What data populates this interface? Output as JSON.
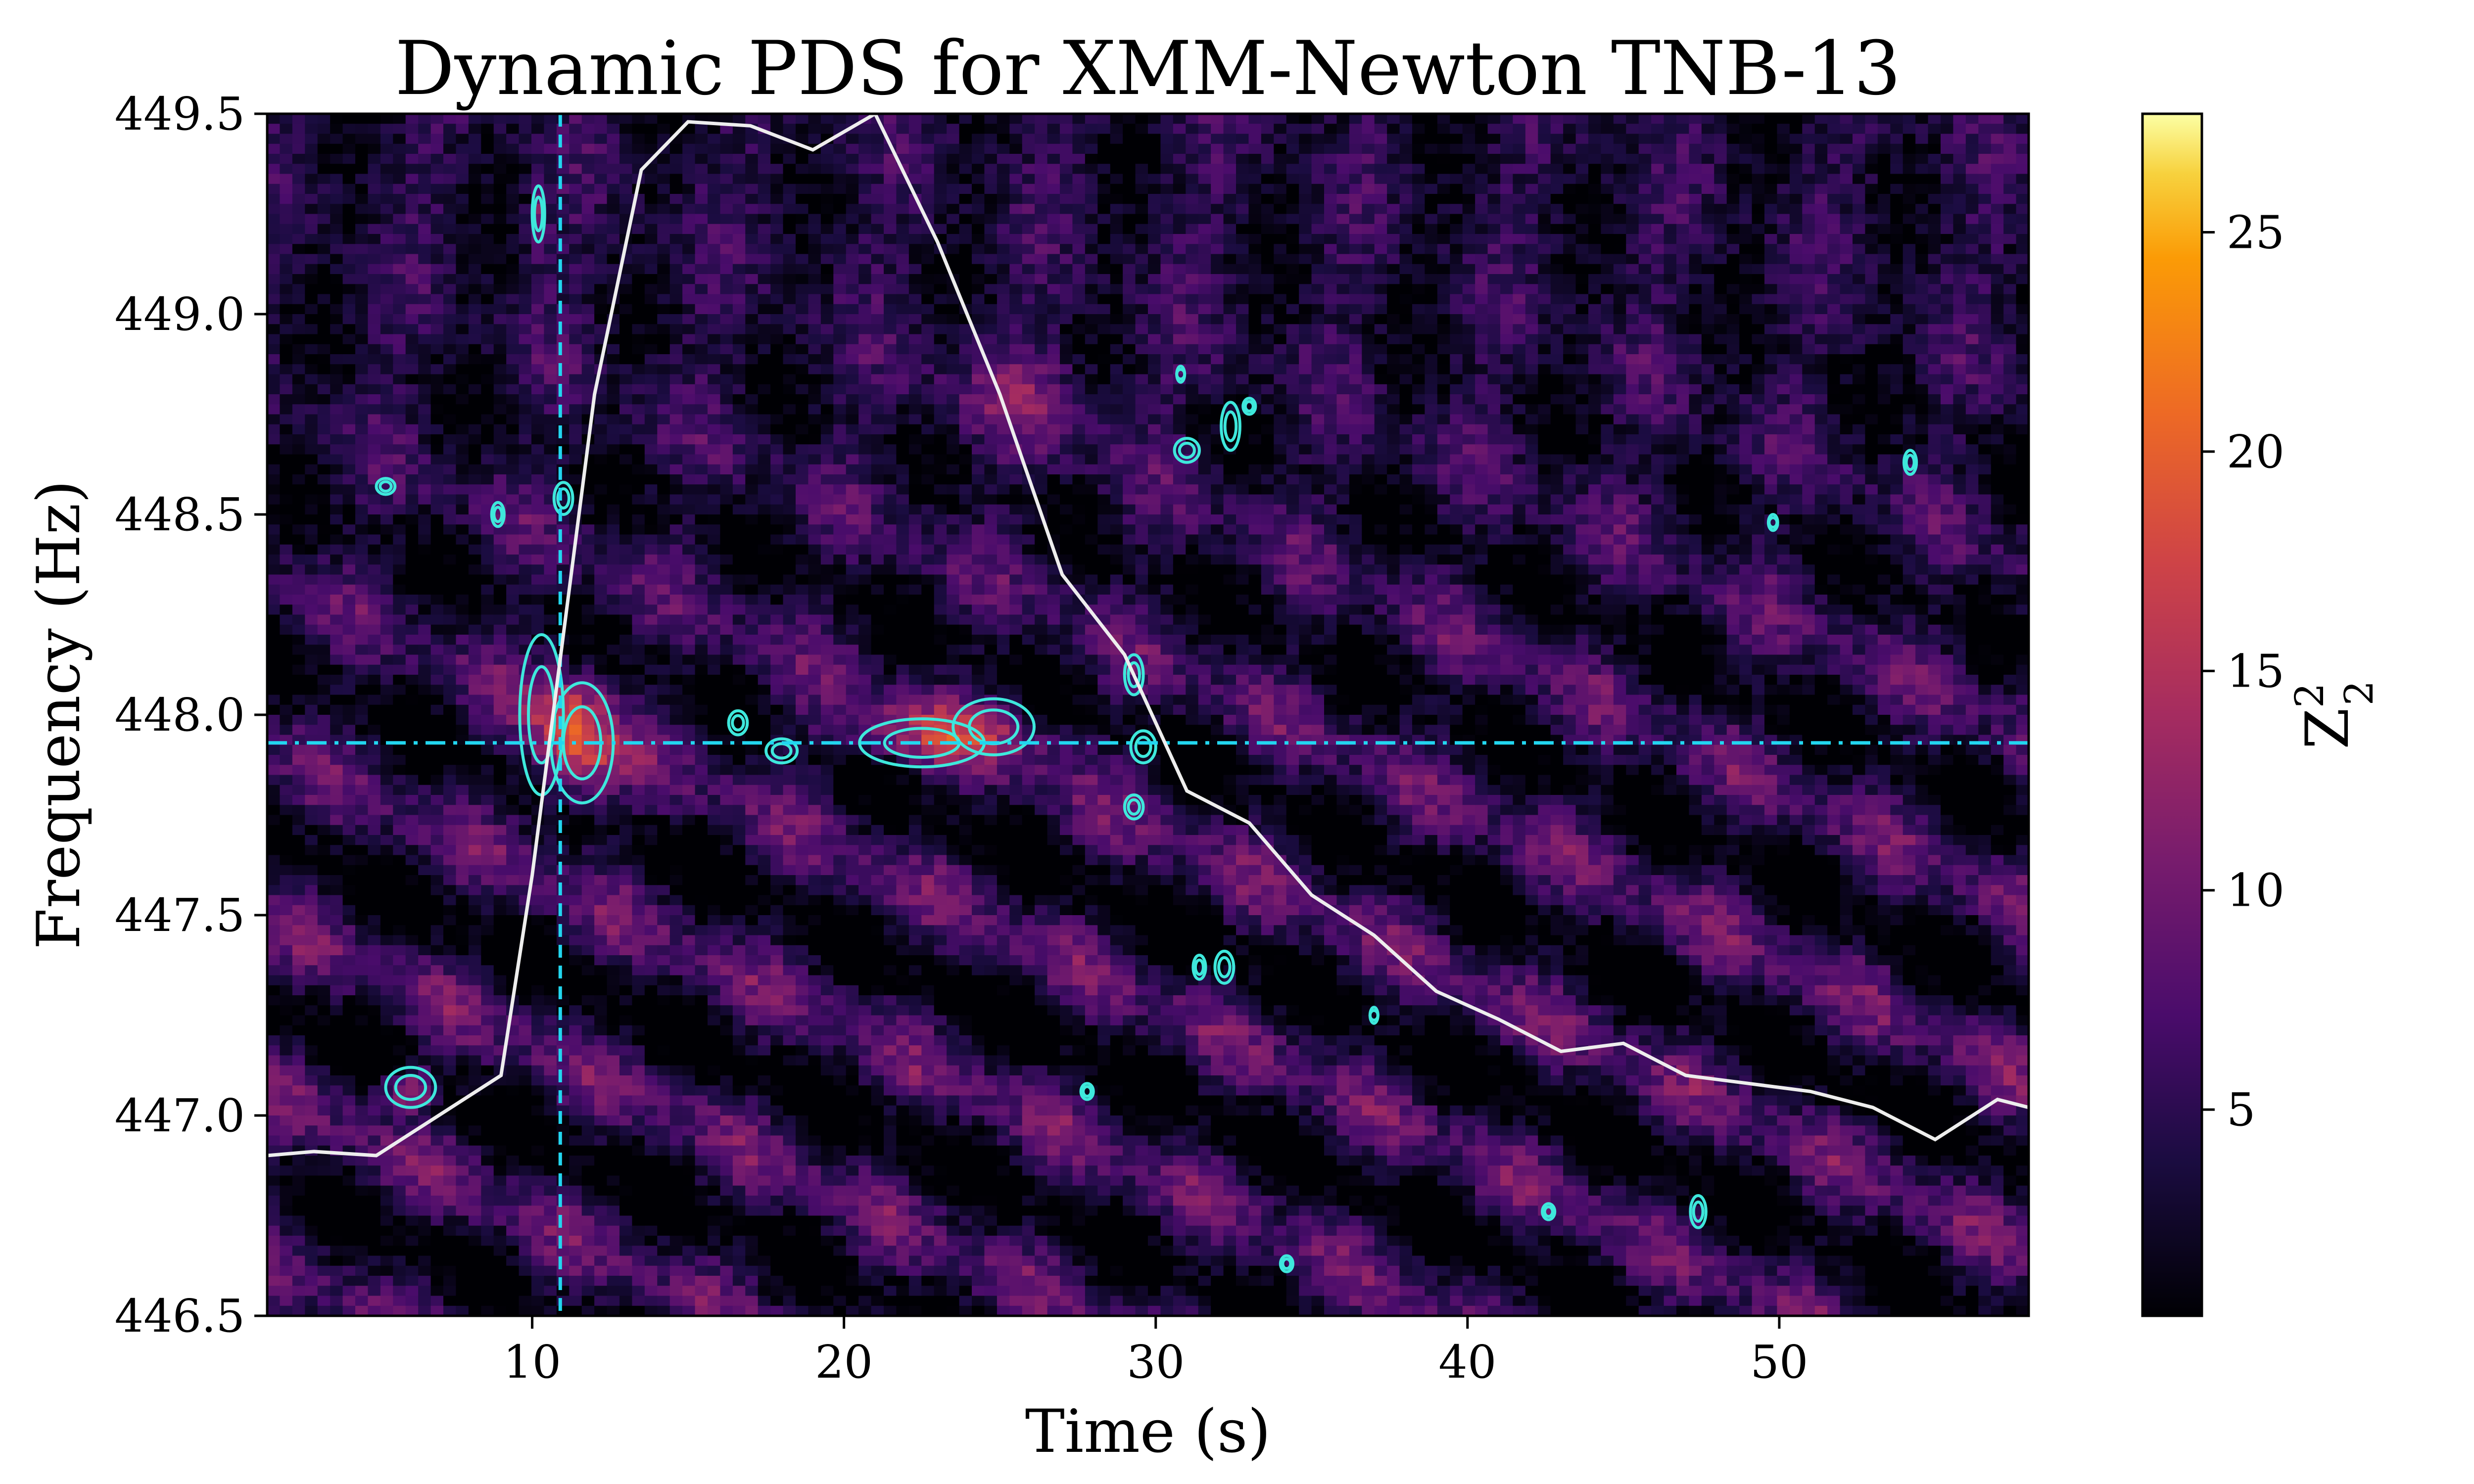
{
  "chart_data": {
    "type": "heatmap",
    "title": "Dynamic PDS for XMM-Newton TNB-13",
    "xlabel": "Time (s)",
    "ylabel": "Frequency (Hz)",
    "xlim": [
      1.5,
      58
    ],
    "ylim": [
      446.5,
      449.5
    ],
    "xticks": [
      10,
      20,
      30,
      40,
      50
    ],
    "xtick_labels": [
      "10",
      "20",
      "30",
      "40",
      "50"
    ],
    "yticks": [
      446.5,
      447.0,
      447.5,
      448.0,
      448.5,
      449.0,
      449.5
    ],
    "ytick_labels": [
      "446.5",
      "447.0",
      "447.5",
      "448.0",
      "448.5",
      "449.0",
      "449.5"
    ],
    "colormap": "inferno",
    "colorbar": {
      "label_base": "Z",
      "label_sup": "2",
      "label_sub": "2",
      "range": [
        0.3,
        27.7
      ],
      "ticks": [
        5,
        10,
        15,
        20,
        25
      ],
      "tick_labels": [
        "5",
        "10",
        "15",
        "20",
        "25"
      ]
    },
    "reference_lines": {
      "vertical_time_s": 10.9,
      "horizontal_frequency_hz": 447.93,
      "color": "#22d6f0"
    },
    "light_curve": {
      "color": "#eeeeee",
      "x": [
        1.5,
        3,
        5,
        9,
        10,
        11,
        12,
        13.5,
        15,
        17,
        19,
        21,
        23,
        25,
        27,
        29,
        31,
        33,
        35,
        37,
        39,
        41,
        43,
        45,
        47,
        49,
        51,
        53,
        55,
        57,
        58
      ],
      "y": [
        446.9,
        446.91,
        446.9,
        447.1,
        447.6,
        448.2,
        448.8,
        449.36,
        449.48,
        449.47,
        449.41,
        449.5,
        449.18,
        448.8,
        448.35,
        448.15,
        447.81,
        447.73,
        447.55,
        447.45,
        447.31,
        447.24,
        447.16,
        447.18,
        447.1,
        447.08,
        447.06,
        447.02,
        446.94,
        447.04,
        447.02
      ]
    },
    "contours": {
      "color": "#3ee8dc",
      "blobs": [
        {
          "x": 10.3,
          "y": 448.0,
          "rx": 0.7,
          "ry": 0.2
        },
        {
          "x": 11.6,
          "y": 447.93,
          "rx": 1.0,
          "ry": 0.15
        },
        {
          "x": 6.1,
          "y": 447.07,
          "rx": 0.8,
          "ry": 0.05
        },
        {
          "x": 10.2,
          "y": 449.25,
          "rx": 0.2,
          "ry": 0.07
        },
        {
          "x": 22.5,
          "y": 447.93,
          "rx": 2.0,
          "ry": 0.06
        },
        {
          "x": 24.8,
          "y": 447.97,
          "rx": 1.3,
          "ry": 0.07
        },
        {
          "x": 18.0,
          "y": 447.91,
          "rx": 0.5,
          "ry": 0.03
        },
        {
          "x": 16.6,
          "y": 447.98,
          "rx": 0.3,
          "ry": 0.03
        },
        {
          "x": 29.3,
          "y": 448.1,
          "rx": 0.3,
          "ry": 0.05
        },
        {
          "x": 29.6,
          "y": 447.92,
          "rx": 0.4,
          "ry": 0.04
        },
        {
          "x": 29.3,
          "y": 447.77,
          "rx": 0.3,
          "ry": 0.03
        },
        {
          "x": 31.0,
          "y": 448.66,
          "rx": 0.4,
          "ry": 0.03
        },
        {
          "x": 32.4,
          "y": 448.72,
          "rx": 0.3,
          "ry": 0.06
        },
        {
          "x": 33.0,
          "y": 448.77,
          "rx": 0.2,
          "ry": 0.02
        },
        {
          "x": 5.3,
          "y": 448.57,
          "rx": 0.3,
          "ry": 0.02
        },
        {
          "x": 8.9,
          "y": 448.5,
          "rx": 0.2,
          "ry": 0.03
        },
        {
          "x": 11.0,
          "y": 448.54,
          "rx": 0.3,
          "ry": 0.04
        },
        {
          "x": 30.8,
          "y": 448.85,
          "rx": 0.08,
          "ry": 0.02
        },
        {
          "x": 31.4,
          "y": 447.37,
          "rx": 0.2,
          "ry": 0.03
        },
        {
          "x": 32.2,
          "y": 447.37,
          "rx": 0.3,
          "ry": 0.04
        },
        {
          "x": 27.8,
          "y": 447.06,
          "rx": 0.2,
          "ry": 0.02
        },
        {
          "x": 37.0,
          "y": 447.25,
          "rx": 0.1,
          "ry": 0.02
        },
        {
          "x": 49.8,
          "y": 448.48,
          "rx": 0.15,
          "ry": 0.02
        },
        {
          "x": 54.2,
          "y": 448.63,
          "rx": 0.2,
          "ry": 0.03
        },
        {
          "x": 47.4,
          "y": 446.76,
          "rx": 0.25,
          "ry": 0.04
        },
        {
          "x": 42.6,
          "y": 446.76,
          "rx": 0.2,
          "ry": 0.02
        },
        {
          "x": 34.2,
          "y": 446.63,
          "rx": 0.2,
          "ry": 0.02
        }
      ]
    }
  }
}
